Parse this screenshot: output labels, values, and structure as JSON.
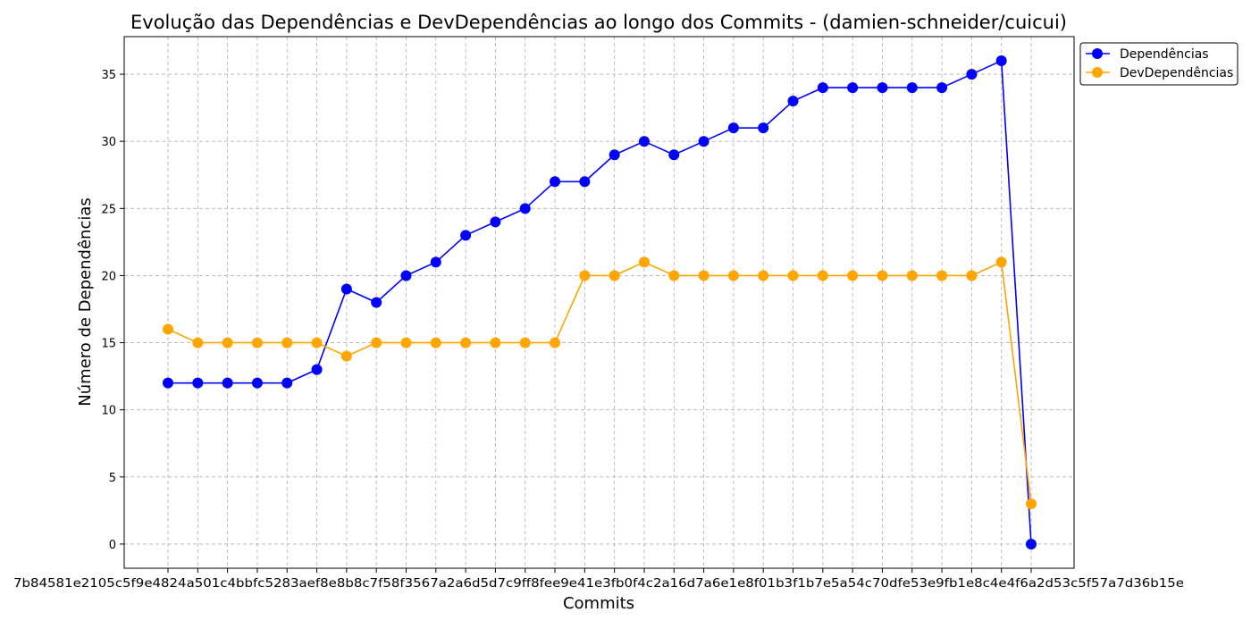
{
  "chart_data": {
    "type": "line",
    "title": "Evolução das Dependências e DevDependências ao longo dos Commits - (damien-schneider/cuicui)",
    "xlabel": "Commits",
    "ylabel": "Número de Dependências",
    "ylim": [
      -1.8,
      37.8
    ],
    "yticks": [
      0,
      5,
      10,
      15,
      20,
      25,
      30,
      35
    ],
    "grid": true,
    "legend_position": "top-right-outside",
    "x_tick_labels_text": "7b84581e2105c5f9e4824a501c4bbfc5283aef8e8b8c7f58f3567a2a6d5d7c9ff8fee9e41e3fb0f4c2a16d7a6e1e8f01b3f1b7e5a54c70dfe53e9fb1e8c4e4f6a2d53c5f57a7d36b15e",
    "x_count": 30,
    "series": [
      {
        "name": "Dependências",
        "color": "#0000ff",
        "values": [
          12,
          12,
          12,
          12,
          12,
          13,
          19,
          18,
          20,
          21,
          23,
          24,
          25,
          27,
          27,
          29,
          30,
          29,
          30,
          31,
          31,
          33,
          34,
          34,
          34,
          34,
          34,
          35,
          36,
          0
        ]
      },
      {
        "name": "DevDependências",
        "color": "#ffa500",
        "values": [
          16,
          15,
          15,
          15,
          15,
          15,
          14,
          15,
          15,
          15,
          15,
          15,
          15,
          15,
          20,
          20,
          21,
          20,
          20,
          20,
          20,
          20,
          20,
          20,
          20,
          20,
          20,
          20,
          21,
          3
        ]
      }
    ]
  }
}
